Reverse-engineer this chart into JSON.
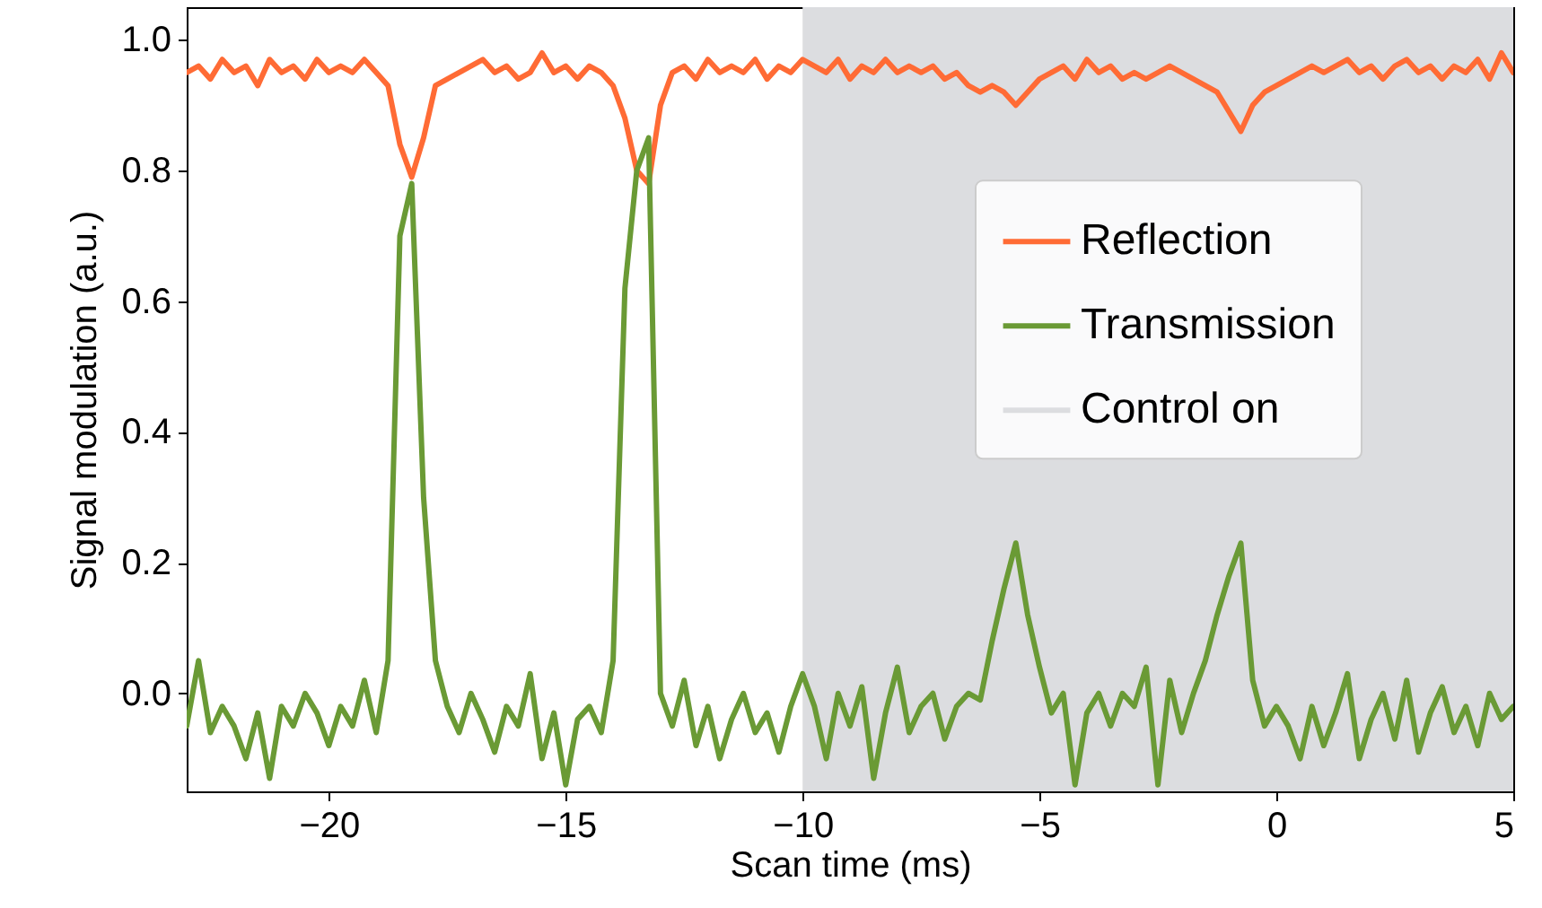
{
  "chart_data": {
    "type": "line",
    "xlabel": "Scan time (ms)",
    "ylabel": "Signal modulation (a.u.)",
    "x": [
      -23,
      -22.75,
      -22.5,
      -22.25,
      -22,
      -21.75,
      -21.5,
      -21.25,
      -21,
      -20.75,
      -20.5,
      -20.25,
      -20,
      -19.75,
      -19.5,
      -19.25,
      -19,
      -18.75,
      -18.5,
      -18.25,
      -18,
      -17.75,
      -17.5,
      -17.25,
      -17,
      -16.75,
      -16.5,
      -16.25,
      -16,
      -15.75,
      -15.5,
      -15.25,
      -15,
      -14.75,
      -14.5,
      -14.25,
      -14,
      -13.75,
      -13.5,
      -13.25,
      -13,
      -12.75,
      -12.5,
      -12.25,
      -12,
      -11.75,
      -11.5,
      -11.25,
      -11,
      -10.75,
      -10.5,
      -10.25,
      -10,
      -9.75,
      -9.5,
      -9.25,
      -9,
      -8.75,
      -8.5,
      -8.25,
      -8,
      -7.75,
      -7.5,
      -7.25,
      -7,
      -6.75,
      -6.5,
      -6.25,
      -6,
      -5.75,
      -5.5,
      -5.25,
      -5,
      -4.75,
      -4.5,
      -4.25,
      -4,
      -3.75,
      -3.5,
      -3.25,
      -3,
      -2.75,
      -2.5,
      -2.25,
      -2,
      -1.75,
      -1.5,
      -1.25,
      -1,
      -0.75,
      -0.5,
      -0.25,
      0,
      0.25,
      0.5,
      0.75,
      1,
      1.25,
      1.5,
      1.75,
      2,
      2.25,
      2.5,
      2.75,
      3,
      3.25,
      3.5,
      3.75,
      4,
      4.25,
      4.5,
      4.75,
      5
    ],
    "series": [
      {
        "name": "Reflection",
        "color": "#ff6b35",
        "values": [
          0.95,
          0.96,
          0.94,
          0.97,
          0.95,
          0.96,
          0.93,
          0.97,
          0.95,
          0.96,
          0.94,
          0.97,
          0.95,
          0.96,
          0.95,
          0.97,
          0.95,
          0.93,
          0.84,
          0.79,
          0.85,
          0.93,
          0.94,
          0.95,
          0.96,
          0.97,
          0.95,
          0.96,
          0.94,
          0.95,
          0.98,
          0.95,
          0.96,
          0.94,
          0.96,
          0.95,
          0.93,
          0.88,
          0.8,
          0.78,
          0.9,
          0.95,
          0.96,
          0.94,
          0.97,
          0.95,
          0.96,
          0.95,
          0.97,
          0.94,
          0.96,
          0.95,
          0.97,
          0.96,
          0.95,
          0.97,
          0.94,
          0.96,
          0.95,
          0.97,
          0.95,
          0.96,
          0.95,
          0.96,
          0.94,
          0.95,
          0.93,
          0.92,
          0.93,
          0.92,
          0.9,
          0.92,
          0.94,
          0.95,
          0.96,
          0.94,
          0.97,
          0.95,
          0.96,
          0.94,
          0.95,
          0.94,
          0.95,
          0.96,
          0.95,
          0.94,
          0.93,
          0.92,
          0.89,
          0.86,
          0.9,
          0.92,
          0.93,
          0.94,
          0.95,
          0.96,
          0.95,
          0.96,
          0.97,
          0.95,
          0.96,
          0.94,
          0.96,
          0.97,
          0.95,
          0.96,
          0.94,
          0.96,
          0.95,
          0.97,
          0.94,
          0.98,
          0.95
        ]
      },
      {
        "name": "Transmission",
        "color": "#6a9a35",
        "values": [
          -0.05,
          0.05,
          -0.06,
          -0.02,
          -0.05,
          -0.1,
          -0.03,
          -0.13,
          -0.02,
          -0.05,
          0.0,
          -0.03,
          -0.08,
          -0.02,
          -0.05,
          0.02,
          -0.06,
          0.05,
          0.7,
          0.78,
          0.3,
          0.05,
          -0.02,
          -0.06,
          0.0,
          -0.04,
          -0.09,
          -0.02,
          -0.05,
          0.03,
          -0.1,
          -0.03,
          -0.14,
          -0.04,
          -0.02,
          -0.06,
          0.05,
          0.62,
          0.8,
          0.85,
          0.0,
          -0.05,
          0.02,
          -0.08,
          -0.02,
          -0.1,
          -0.04,
          0.0,
          -0.06,
          -0.03,
          -0.09,
          -0.02,
          0.03,
          -0.02,
          -0.1,
          0.0,
          -0.05,
          0.01,
          -0.13,
          -0.03,
          0.04,
          -0.06,
          -0.02,
          0.0,
          -0.07,
          -0.02,
          0.0,
          -0.01,
          0.08,
          0.16,
          0.23,
          0.12,
          0.04,
          -0.03,
          0.0,
          -0.14,
          -0.03,
          0.0,
          -0.05,
          0.0,
          -0.02,
          0.04,
          -0.14,
          0.02,
          -0.06,
          0.0,
          0.05,
          0.12,
          0.18,
          0.23,
          0.02,
          -0.05,
          -0.02,
          -0.05,
          -0.1,
          -0.02,
          -0.08,
          -0.03,
          0.03,
          -0.1,
          -0.04,
          0.0,
          -0.07,
          0.02,
          -0.09,
          -0.03,
          0.01,
          -0.06,
          -0.02,
          -0.08,
          0.0,
          -0.04,
          -0.02
        ]
      }
    ],
    "bands": [
      {
        "axis": "x",
        "from": -10,
        "to": 5,
        "label": "Control on",
        "color": "#dcdde0"
      }
    ],
    "xlim": [
      -23,
      5
    ],
    "xticks": [
      -20,
      -15,
      -10,
      -5,
      0,
      5
    ],
    "ylim": [
      -0.15,
      1.05
    ],
    "yticks": [
      {
        "value": 0,
        "label": "0.0"
      },
      {
        "value": 0.2,
        "label": "0.2"
      },
      {
        "value": 0.4,
        "label": "0.4"
      },
      {
        "value": 0.6,
        "label": "0.6"
      },
      {
        "value": 0.8,
        "label": "0.8"
      },
      {
        "value": 1,
        "label": "1.0"
      }
    ],
    "legend": "right",
    "grid": false,
    "line_style": "solid",
    "marker": "none"
  }
}
